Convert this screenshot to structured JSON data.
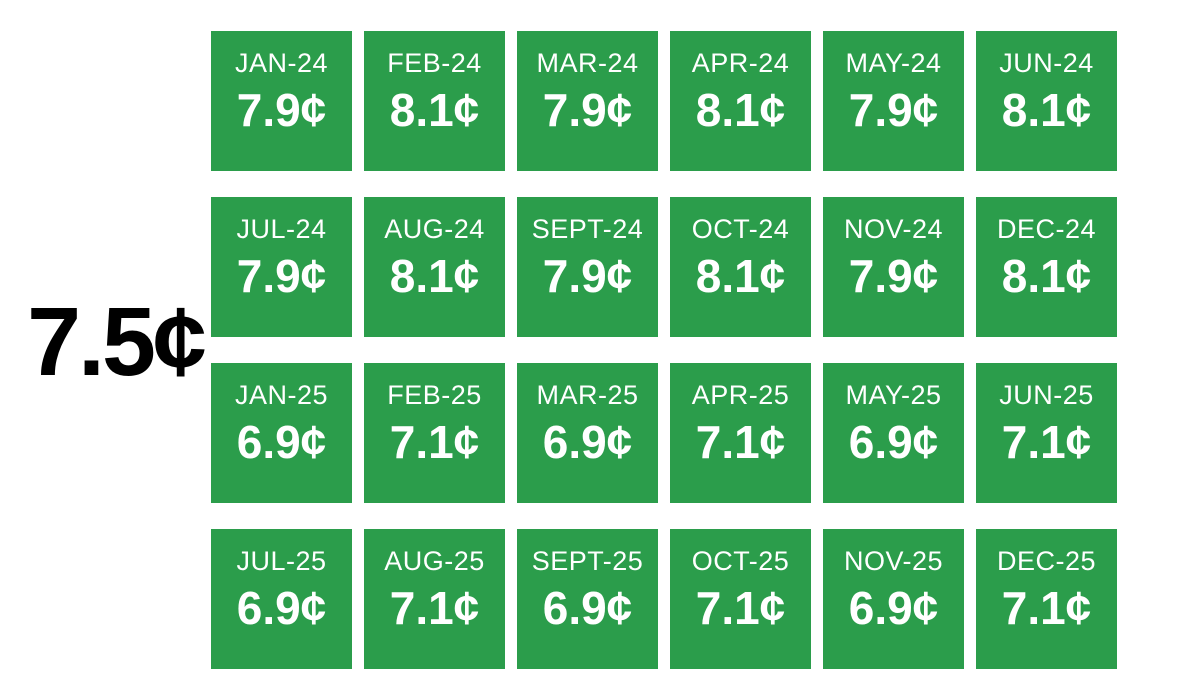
{
  "headline": {
    "value": "7.5¢"
  },
  "colors": {
    "tile_green": "#2b9d4b",
    "tile_text": "#ffffff",
    "headline_text": "#000000",
    "background": "#ffffff"
  },
  "chart_data": {
    "type": "heatmap",
    "title": "",
    "unit": "¢",
    "highlight_value": "7.5¢",
    "layout": "6 columns x 4 rows tile grid, months left-to-right top-to-bottom",
    "categories": [
      "JAN-24",
      "FEB-24",
      "MAR-24",
      "APR-24",
      "MAY-24",
      "JUN-24",
      "JUL-24",
      "AUG-24",
      "SEPT-24",
      "OCT-24",
      "NOV-24",
      "DEC-24",
      "JAN-25",
      "FEB-25",
      "MAR-25",
      "APR-25",
      "MAY-25",
      "JUN-25",
      "JUL-25",
      "AUG-25",
      "SEPT-25",
      "OCT-25",
      "NOV-25",
      "DEC-25"
    ],
    "values": [
      7.9,
      8.1,
      7.9,
      8.1,
      7.9,
      8.1,
      7.9,
      8.1,
      7.9,
      8.1,
      7.9,
      8.1,
      6.9,
      7.1,
      6.9,
      7.1,
      6.9,
      7.1,
      6.9,
      7.1,
      6.9,
      7.1,
      6.9,
      7.1
    ],
    "display_values": [
      "7.9¢",
      "8.1¢",
      "7.9¢",
      "8.1¢",
      "7.9¢",
      "8.1¢",
      "7.9¢",
      "8.1¢",
      "7.9¢",
      "8.1¢",
      "7.9¢",
      "8.1¢",
      "6.9¢",
      "7.1¢",
      "6.9¢",
      "7.1¢",
      "6.9¢",
      "7.1¢",
      "6.9¢",
      "7.1¢",
      "6.9¢",
      "7.1¢",
      "6.9¢",
      "7.1¢"
    ]
  }
}
